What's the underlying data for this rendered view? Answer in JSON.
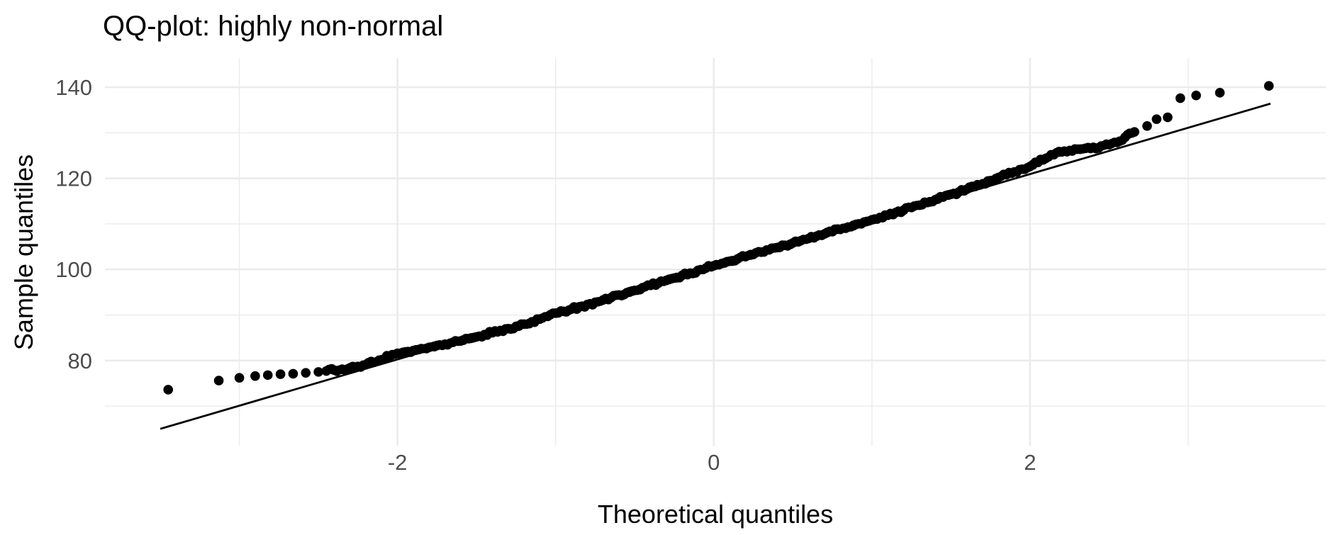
{
  "chart_data": {
    "type": "scatter",
    "title": "QQ-plot: highly non-normal",
    "xlabel": "Theoretical quantiles",
    "ylabel": "Sample quantiles",
    "x_ticks": [
      "-2",
      "0",
      "2"
    ],
    "x_tick_values": [
      -2,
      0,
      2
    ],
    "x_minor_values": [
      -3,
      -1,
      1,
      3
    ],
    "y_ticks": [
      "80",
      "100",
      "120",
      "140"
    ],
    "y_tick_values": [
      80,
      100,
      120,
      140
    ],
    "y_minor_values": [
      70,
      90,
      110,
      130
    ],
    "xlim": [
      -3.85,
      3.87
    ],
    "ylim": [
      61.3,
      146.4
    ],
    "grid": "on",
    "legend": "none",
    "theme": "minimal-white",
    "reference_line": {
      "x1": -3.5,
      "y1": 65.0,
      "x2": 3.52,
      "y2": 136.4,
      "slope": 10.17,
      "intercept": 100.6
    },
    "dense_range": [
      -2.45,
      2.66
    ],
    "points": [
      [
        -3.45,
        73.6
      ],
      [
        -3.13,
        75.6
      ],
      [
        -3.0,
        76.2
      ],
      [
        -2.9,
        76.6
      ],
      [
        -2.82,
        76.8
      ],
      [
        -2.74,
        77.0
      ],
      [
        -2.66,
        77.1
      ],
      [
        -2.58,
        77.3
      ],
      [
        -2.5,
        77.5
      ],
      [
        -2.45,
        77.7
      ],
      [
        -2.4,
        77.9
      ],
      [
        -2.35,
        78.1
      ],
      [
        -2.3,
        78.4
      ],
      [
        -2.25,
        78.7
      ],
      [
        -2.2,
        79.1
      ],
      [
        -2.15,
        79.6
      ],
      [
        -2.1,
        80.2
      ],
      [
        -2.05,
        80.9
      ],
      [
        -2.0,
        81.6
      ],
      [
        -1.95,
        81.9
      ],
      [
        -1.9,
        82.2
      ],
      [
        -1.85,
        82.6
      ],
      [
        -1.8,
        82.9
      ],
      [
        -1.75,
        83.3
      ],
      [
        -1.7,
        83.6
      ],
      [
        -1.65,
        84.0
      ],
      [
        -1.6,
        84.3
      ],
      [
        -1.55,
        84.8
      ],
      [
        -1.5,
        85.2
      ],
      [
        -1.45,
        85.7
      ],
      [
        -1.4,
        86.1
      ],
      [
        -1.35,
        86.6
      ],
      [
        -1.3,
        87.0
      ],
      [
        -1.25,
        87.5
      ],
      [
        -1.2,
        88.0
      ],
      [
        -1.15,
        88.5
      ],
      [
        -1.1,
        89.1
      ],
      [
        -1.05,
        89.7
      ],
      [
        -1.0,
        90.4
      ],
      [
        -0.95,
        90.8
      ],
      [
        -0.9,
        91.3
      ],
      [
        -0.85,
        91.8
      ],
      [
        -0.8,
        92.3
      ],
      [
        -0.75,
        92.8
      ],
      [
        -0.7,
        93.3
      ],
      [
        -0.65,
        93.8
      ],
      [
        -0.6,
        94.4
      ],
      [
        -0.55,
        94.9
      ],
      [
        -0.5,
        95.4
      ],
      [
        -0.45,
        96.0
      ],
      [
        -0.4,
        96.5
      ],
      [
        -0.35,
        97.0
      ],
      [
        -0.3,
        97.6
      ],
      [
        -0.25,
        98.1
      ],
      [
        -0.2,
        98.7
      ],
      [
        -0.15,
        99.2
      ],
      [
        -0.1,
        99.8
      ],
      [
        -0.05,
        100.3
      ],
      [
        0.0,
        100.8
      ],
      [
        0.05,
        101.3
      ],
      [
        0.1,
        101.8
      ],
      [
        0.15,
        102.3
      ],
      [
        0.2,
        102.8
      ],
      [
        0.25,
        103.3
      ],
      [
        0.3,
        103.8
      ],
      [
        0.35,
        104.3
      ],
      [
        0.4,
        104.8
      ],
      [
        0.45,
        105.3
      ],
      [
        0.5,
        105.8
      ],
      [
        0.55,
        106.3
      ],
      [
        0.6,
        106.8
      ],
      [
        0.65,
        107.3
      ],
      [
        0.7,
        107.8
      ],
      [
        0.75,
        108.3
      ],
      [
        0.8,
        108.8
      ],
      [
        0.85,
        109.3
      ],
      [
        0.9,
        109.9
      ],
      [
        0.95,
        110.4
      ],
      [
        1.0,
        110.9
      ],
      [
        1.05,
        111.4
      ],
      [
        1.1,
        111.9
      ],
      [
        1.15,
        112.5
      ],
      [
        1.2,
        113.0
      ],
      [
        1.25,
        113.6
      ],
      [
        1.3,
        114.1
      ],
      [
        1.35,
        114.7
      ],
      [
        1.4,
        115.3
      ],
      [
        1.45,
        115.9
      ],
      [
        1.5,
        116.5
      ],
      [
        1.55,
        117.0
      ],
      [
        1.6,
        117.6
      ],
      [
        1.65,
        118.2
      ],
      [
        1.7,
        118.8
      ],
      [
        1.75,
        119.5
      ],
      [
        1.8,
        120.2
      ],
      [
        1.85,
        120.8
      ],
      [
        1.9,
        121.4
      ],
      [
        1.95,
        122.0
      ],
      [
        2.0,
        122.6
      ],
      [
        2.05,
        123.5
      ],
      [
        2.1,
        124.4
      ],
      [
        2.15,
        125.2
      ],
      [
        2.2,
        125.8
      ],
      [
        2.25,
        126.1
      ],
      [
        2.3,
        126.4
      ],
      [
        2.35,
        126.6
      ],
      [
        2.4,
        126.8
      ],
      [
        2.45,
        127.1
      ],
      [
        2.5,
        127.4
      ],
      [
        2.55,
        127.9
      ],
      [
        2.6,
        129.0
      ],
      [
        2.66,
        130.2
      ],
      [
        2.74,
        131.5
      ],
      [
        2.8,
        133.0
      ],
      [
        2.87,
        133.4
      ],
      [
        2.95,
        137.6
      ],
      [
        3.05,
        138.2
      ],
      [
        3.2,
        138.8
      ],
      [
        3.51,
        140.3
      ]
    ],
    "colors": {
      "points": "#000000",
      "reference_line": "#000000",
      "grid": "#EBEBEB",
      "tick_text": "#4D4D4D",
      "title_text": "#000000",
      "background": "#FFFFFF"
    }
  }
}
